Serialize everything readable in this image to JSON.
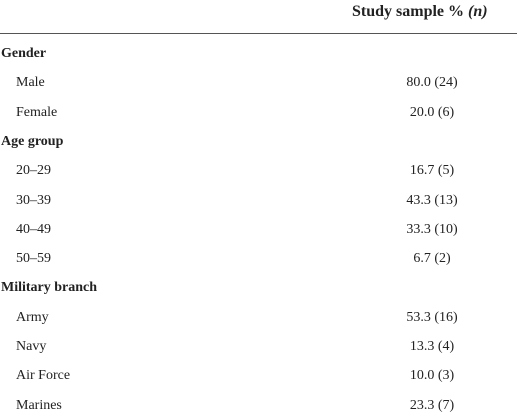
{
  "header": {
    "label": "Study sample %",
    "n": "(n)"
  },
  "table": {
    "sections": [
      {
        "title": "Gender",
        "rows": [
          [
            "Male",
            "80.0 (24)"
          ],
          [
            "Female",
            "20.0 (6)"
          ]
        ]
      },
      {
        "title": "Age group",
        "rows": [
          [
            "20–29",
            "16.7 (5)"
          ],
          [
            "30–39",
            "43.3 (13)"
          ],
          [
            "40–49",
            "33.3 (10)"
          ],
          [
            "50–59",
            "6.7 (2)"
          ]
        ]
      },
      {
        "title": "Military branch",
        "rows": [
          [
            "Army",
            "53.3 (16)"
          ],
          [
            "Navy",
            "13.3 (4)"
          ],
          [
            "Air Force",
            "10.0 (3)"
          ],
          [
            "Marines",
            "23.3 (7)"
          ]
        ]
      }
    ]
  }
}
